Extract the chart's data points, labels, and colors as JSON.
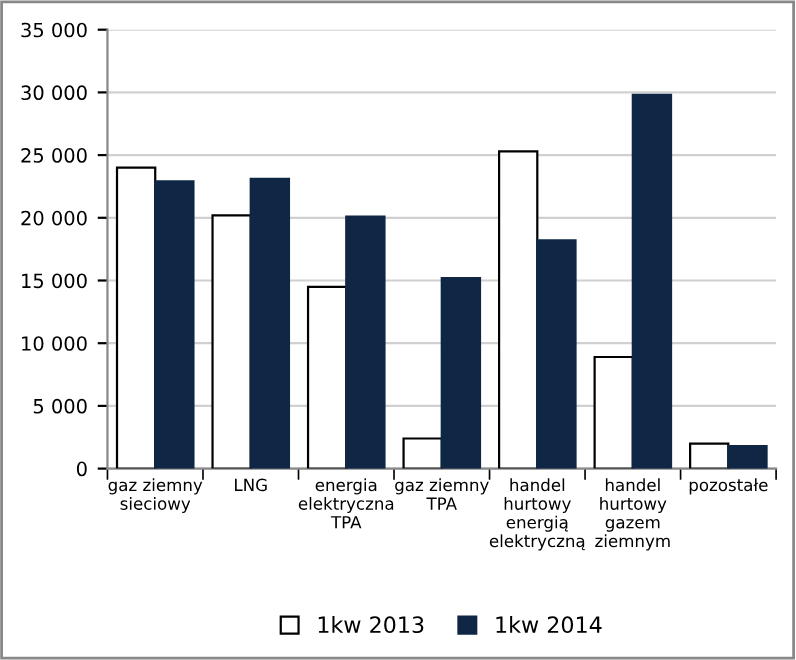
{
  "chart_data": {
    "type": "bar",
    "categories": [
      "gaz ziemny\nsieciowy",
      "LNG",
      "energia\nelektryczna\nTPA",
      "gaz ziemny\nTPA",
      "handel\nhurtowy\nenergią\nelektryczną",
      "handel\nhurtowy\ngazem\nziemnym",
      "pozostałe"
    ],
    "series": [
      {
        "name": "1kw 2013",
        "color": "#ffffff",
        "values": [
          24000,
          20200,
          14500,
          2400,
          25300,
          8900,
          2000
        ]
      },
      {
        "name": "1kw 2014",
        "color": "#0f2744",
        "values": [
          22900,
          23100,
          20100,
          15200,
          18200,
          29800,
          1800
        ]
      }
    ],
    "ylim": [
      0,
      35000
    ],
    "yticks": [
      {
        "value": 0,
        "label": "0"
      },
      {
        "value": 5000,
        "label": "5 000"
      },
      {
        "value": 10000,
        "label": "10 000"
      },
      {
        "value": 15000,
        "label": "15 000"
      },
      {
        "value": 20000,
        "label": "20 000"
      },
      {
        "value": 25000,
        "label": "25 000"
      },
      {
        "value": 30000,
        "label": "30 000"
      },
      {
        "value": 35000,
        "label": "35 000"
      }
    ],
    "grid": "y",
    "legend": "bottom"
  }
}
